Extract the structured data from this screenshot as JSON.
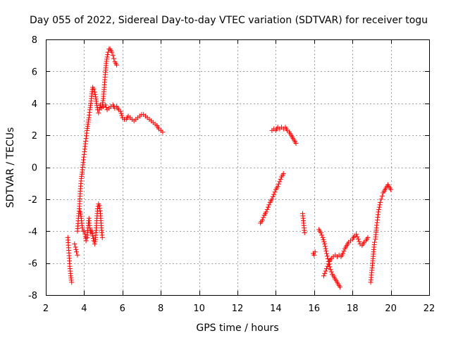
{
  "chart_data": {
    "type": "scatter",
    "title": "Day 055 of 2022, Sidereal Day-to-day VTEC variation (SDTVAR) for receiver togu",
    "xlabel": "GPS time / hours",
    "ylabel": "SDTVAR / TECUs",
    "xlim": [
      2,
      22
    ],
    "ylim": [
      -8,
      8
    ],
    "xticks": [
      2,
      4,
      6,
      8,
      10,
      12,
      14,
      16,
      18,
      20,
      22
    ],
    "yticks": [
      -8,
      -6,
      -4,
      -2,
      0,
      2,
      4,
      6,
      8
    ],
    "xtick_labels": [
      "2",
      "4",
      "6",
      "8",
      "10",
      "12",
      "14",
      "16",
      "18",
      "20",
      "22"
    ],
    "ytick_labels": [
      "-8",
      "-6",
      "-4",
      "-2",
      "0",
      "2",
      "4",
      "6",
      "8"
    ],
    "grid": true,
    "marker": "+",
    "series": [
      {
        "name": "SDTVAR",
        "color": "#ff0000",
        "segments": [
          [
            [
              3.15,
              -4.4
            ],
            [
              3.2,
              -5.2
            ],
            [
              3.25,
              -6.2
            ],
            [
              3.3,
              -6.8
            ],
            [
              3.35,
              -7.2
            ]
          ],
          [
            [
              3.5,
              -4.8
            ],
            [
              3.55,
              -5.0
            ],
            [
              3.6,
              -5.3
            ],
            [
              3.65,
              -5.5
            ]
          ],
          [
            [
              3.65,
              -4.0
            ],
            [
              3.7,
              -3.2
            ],
            [
              3.75,
              -2.6
            ],
            [
              3.8,
              -1.5
            ],
            [
              3.85,
              -0.7
            ],
            [
              3.9,
              -0.3
            ],
            [
              3.95,
              0.3
            ],
            [
              4.0,
              0.8
            ],
            [
              4.05,
              1.3
            ],
            [
              4.1,
              1.8
            ],
            [
              4.15,
              2.3
            ],
            [
              4.2,
              2.7
            ],
            [
              4.25,
              3.1
            ],
            [
              4.3,
              3.6
            ],
            [
              4.35,
              4.0
            ],
            [
              4.4,
              4.6
            ],
            [
              4.45,
              5.0
            ],
            [
              4.5,
              4.9
            ],
            [
              4.55,
              4.7
            ],
            [
              4.6,
              4.4
            ],
            [
              4.65,
              4.0
            ],
            [
              4.7,
              3.6
            ],
            [
              4.75,
              3.4
            ],
            [
              4.8,
              3.6
            ],
            [
              4.85,
              3.9
            ],
            [
              4.9,
              3.7
            ],
            [
              4.95,
              3.9
            ],
            [
              5.0,
              4.3
            ],
            [
              5.05,
              5.0
            ],
            [
              5.1,
              5.8
            ],
            [
              5.15,
              6.5
            ],
            [
              5.2,
              6.9
            ],
            [
              5.25,
              7.2
            ],
            [
              5.3,
              7.4
            ],
            [
              5.35,
              7.4
            ],
            [
              5.4,
              7.3
            ],
            [
              5.45,
              7.2
            ],
            [
              5.5,
              7.0
            ],
            [
              5.55,
              6.8
            ],
            [
              5.6,
              6.6
            ],
            [
              5.65,
              6.5
            ],
            [
              5.7,
              6.4
            ]
          ],
          [
            [
              5.0,
              3.8
            ],
            [
              5.1,
              3.9
            ],
            [
              5.2,
              3.6
            ],
            [
              5.3,
              3.7
            ],
            [
              5.4,
              3.8
            ],
            [
              5.5,
              3.9
            ],
            [
              5.6,
              3.7
            ],
            [
              5.7,
              3.8
            ],
            [
              5.8,
              3.6
            ],
            [
              5.9,
              3.5
            ],
            [
              6.0,
              3.1
            ],
            [
              6.1,
              3.0
            ],
            [
              6.2,
              3.0
            ],
            [
              6.3,
              3.2
            ],
            [
              6.4,
              3.1
            ],
            [
              6.5,
              3.0
            ],
            [
              6.6,
              2.9
            ],
            [
              6.7,
              3.0
            ],
            [
              6.8,
              3.1
            ],
            [
              6.9,
              3.2
            ],
            [
              7.0,
              3.3
            ],
            [
              7.1,
              3.3
            ],
            [
              7.2,
              3.2
            ],
            [
              7.3,
              3.1
            ],
            [
              7.4,
              3.0
            ],
            [
              7.5,
              2.9
            ],
            [
              7.6,
              2.8
            ],
            [
              7.7,
              2.7
            ],
            [
              7.8,
              2.6
            ],
            [
              7.9,
              2.4
            ],
            [
              8.0,
              2.3
            ],
            [
              8.1,
              2.2
            ]
          ],
          [
            [
              3.8,
              -2.8
            ],
            [
              3.85,
              -3.2
            ],
            [
              3.9,
              -3.8
            ],
            [
              3.95,
              -4.0
            ],
            [
              4.0,
              -4.0
            ],
            [
              4.05,
              -4.2
            ],
            [
              4.1,
              -4.6
            ],
            [
              4.15,
              -4.4
            ],
            [
              4.2,
              -3.8
            ],
            [
              4.25,
              -3.2
            ],
            [
              4.3,
              -3.8
            ],
            [
              4.35,
              -4.1
            ],
            [
              4.4,
              -4.0
            ],
            [
              4.45,
              -4.3
            ],
            [
              4.5,
              -4.6
            ],
            [
              4.55,
              -4.8
            ],
            [
              4.6,
              -4.4
            ],
            [
              4.65,
              -3.5
            ],
            [
              4.7,
              -2.6
            ],
            [
              4.75,
              -2.3
            ],
            [
              4.8,
              -2.4
            ],
            [
              4.85,
              -2.9
            ],
            [
              4.9,
              -3.8
            ],
            [
              4.95,
              -4.4
            ]
          ],
          [
            [
              13.2,
              -3.5
            ],
            [
              13.3,
              -3.3
            ],
            [
              13.4,
              -3.0
            ],
            [
              13.5,
              -2.8
            ],
            [
              13.6,
              -2.5
            ],
            [
              13.7,
              -2.2
            ],
            [
              13.8,
              -2.0
            ],
            [
              13.9,
              -1.7
            ],
            [
              14.0,
              -1.4
            ],
            [
              14.1,
              -1.2
            ],
            [
              14.2,
              -0.9
            ],
            [
              14.3,
              -0.6
            ],
            [
              14.4,
              -0.4
            ]
          ],
          [
            [
              13.8,
              2.3
            ],
            [
              13.9,
              2.4
            ],
            [
              14.0,
              2.3
            ],
            [
              14.1,
              2.5
            ],
            [
              14.2,
              2.4
            ],
            [
              14.3,
              2.5
            ],
            [
              14.4,
              2.4
            ],
            [
              14.5,
              2.5
            ],
            [
              14.6,
              2.3
            ],
            [
              14.7,
              2.2
            ],
            [
              14.8,
              2.0
            ],
            [
              14.9,
              1.8
            ],
            [
              15.0,
              1.6
            ],
            [
              15.05,
              1.5
            ]
          ],
          [
            [
              15.4,
              -2.9
            ],
            [
              15.45,
              -3.5
            ],
            [
              15.5,
              -4.1
            ]
          ],
          [
            [
              15.95,
              -5.4
            ],
            [
              16.0,
              -5.5
            ],
            [
              16.05,
              -5.3
            ]
          ],
          [
            [
              16.25,
              -3.9
            ],
            [
              16.35,
              -4.1
            ],
            [
              16.45,
              -4.4
            ],
            [
              16.55,
              -4.8
            ],
            [
              16.65,
              -5.4
            ],
            [
              16.75,
              -5.9
            ],
            [
              16.85,
              -6.4
            ],
            [
              16.95,
              -6.7
            ],
            [
              17.05,
              -6.9
            ],
            [
              17.15,
              -7.1
            ],
            [
              17.25,
              -7.3
            ],
            [
              17.35,
              -7.5
            ]
          ],
          [
            [
              16.5,
              -6.8
            ],
            [
              16.6,
              -6.5
            ],
            [
              16.7,
              -6.2
            ],
            [
              16.8,
              -5.9
            ],
            [
              16.9,
              -5.7
            ],
            [
              17.0,
              -5.6
            ],
            [
              17.1,
              -5.5
            ],
            [
              17.2,
              -5.6
            ],
            [
              17.3,
              -5.5
            ],
            [
              17.4,
              -5.6
            ],
            [
              17.5,
              -5.4
            ],
            [
              17.6,
              -5.1
            ],
            [
              17.7,
              -4.9
            ],
            [
              17.8,
              -4.7
            ],
            [
              17.9,
              -4.6
            ],
            [
              18.0,
              -4.5
            ],
            [
              18.1,
              -4.3
            ],
            [
              18.2,
              -4.2
            ],
            [
              18.3,
              -4.5
            ],
            [
              18.4,
              -4.8
            ],
            [
              18.5,
              -4.9
            ],
            [
              18.6,
              -4.7
            ],
            [
              18.7,
              -4.6
            ],
            [
              18.8,
              -4.4
            ]
          ],
          [
            [
              18.95,
              -7.2
            ],
            [
              19.0,
              -6.6
            ],
            [
              19.05,
              -6.0
            ],
            [
              19.1,
              -5.3
            ],
            [
              19.15,
              -4.7
            ],
            [
              19.2,
              -4.5
            ],
            [
              19.25,
              -3.8
            ],
            [
              19.3,
              -3.3
            ],
            [
              19.35,
              -2.8
            ],
            [
              19.4,
              -2.5
            ],
            [
              19.45,
              -2.2
            ],
            [
              19.5,
              -2.0
            ],
            [
              19.55,
              -1.8
            ],
            [
              19.6,
              -1.6
            ],
            [
              19.65,
              -1.5
            ],
            [
              19.7,
              -1.4
            ],
            [
              19.75,
              -1.3
            ],
            [
              19.8,
              -1.2
            ],
            [
              19.85,
              -1.1
            ],
            [
              19.9,
              -1.2
            ],
            [
              19.95,
              -1.3
            ],
            [
              20.0,
              -1.4
            ]
          ]
        ]
      }
    ]
  }
}
